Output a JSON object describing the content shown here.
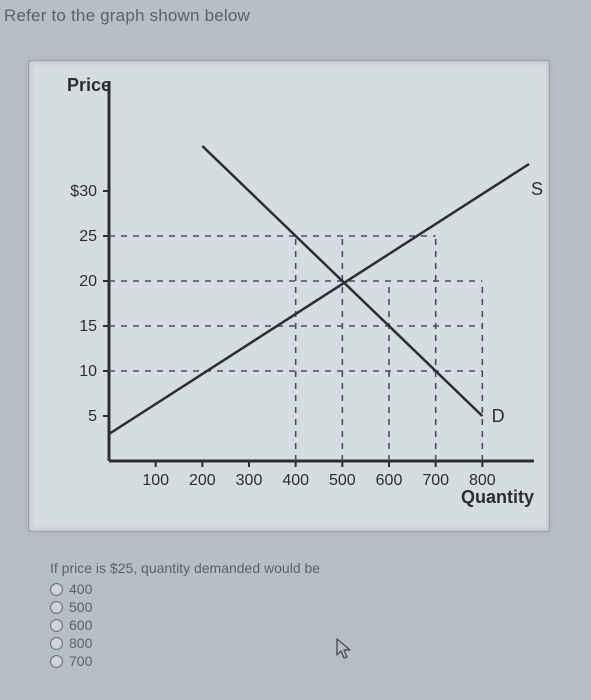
{
  "prompt_top": "Refer to the graph shown below",
  "chart": {
    "type": "line",
    "y_axis_label": "Price",
    "x_axis_label": "Quantity",
    "x_ticks": [
      100,
      200,
      300,
      400,
      500,
      600,
      700,
      800
    ],
    "y_ticks": [
      {
        "v": 30,
        "label": "$30"
      },
      {
        "v": 25,
        "label": "25"
      },
      {
        "v": 20,
        "label": "20"
      },
      {
        "v": 15,
        "label": "15"
      },
      {
        "v": 10,
        "label": "10"
      },
      {
        "v": 5,
        "label": "5"
      }
    ],
    "xlim": [
      0,
      900
    ],
    "ylim": [
      0,
      40
    ],
    "supply": {
      "label": "S",
      "points": [
        [
          0,
          3
        ],
        [
          900,
          33
        ]
      ],
      "color": "#2a2e32",
      "width": 2.5
    },
    "demand": {
      "label": "D",
      "points": [
        [
          200,
          35
        ],
        [
          800,
          5
        ]
      ],
      "color": "#2a2e32",
      "width": 2.5
    },
    "guides": {
      "color": "#4a4f55",
      "dash": "6 6",
      "h_lines_from_y": [
        25,
        20,
        15,
        10
      ],
      "v_lines_at_x": [
        400,
        500,
        600,
        700,
        800
      ],
      "h_line_endpoints": {
        "25": 700,
        "20": 800,
        "15": 800,
        "10": 800
      },
      "v_line_tops": {
        "400": 25,
        "500": 25,
        "600": 20,
        "700": 25,
        "800": 20
      }
    },
    "background_color": "#d6dde0",
    "axis_color": "#2a2e32",
    "tick_font_size": 16
  },
  "question": {
    "text": "If price is $25, quantity demanded would be",
    "options": [
      "400",
      "500",
      "600",
      "800",
      "700"
    ]
  }
}
